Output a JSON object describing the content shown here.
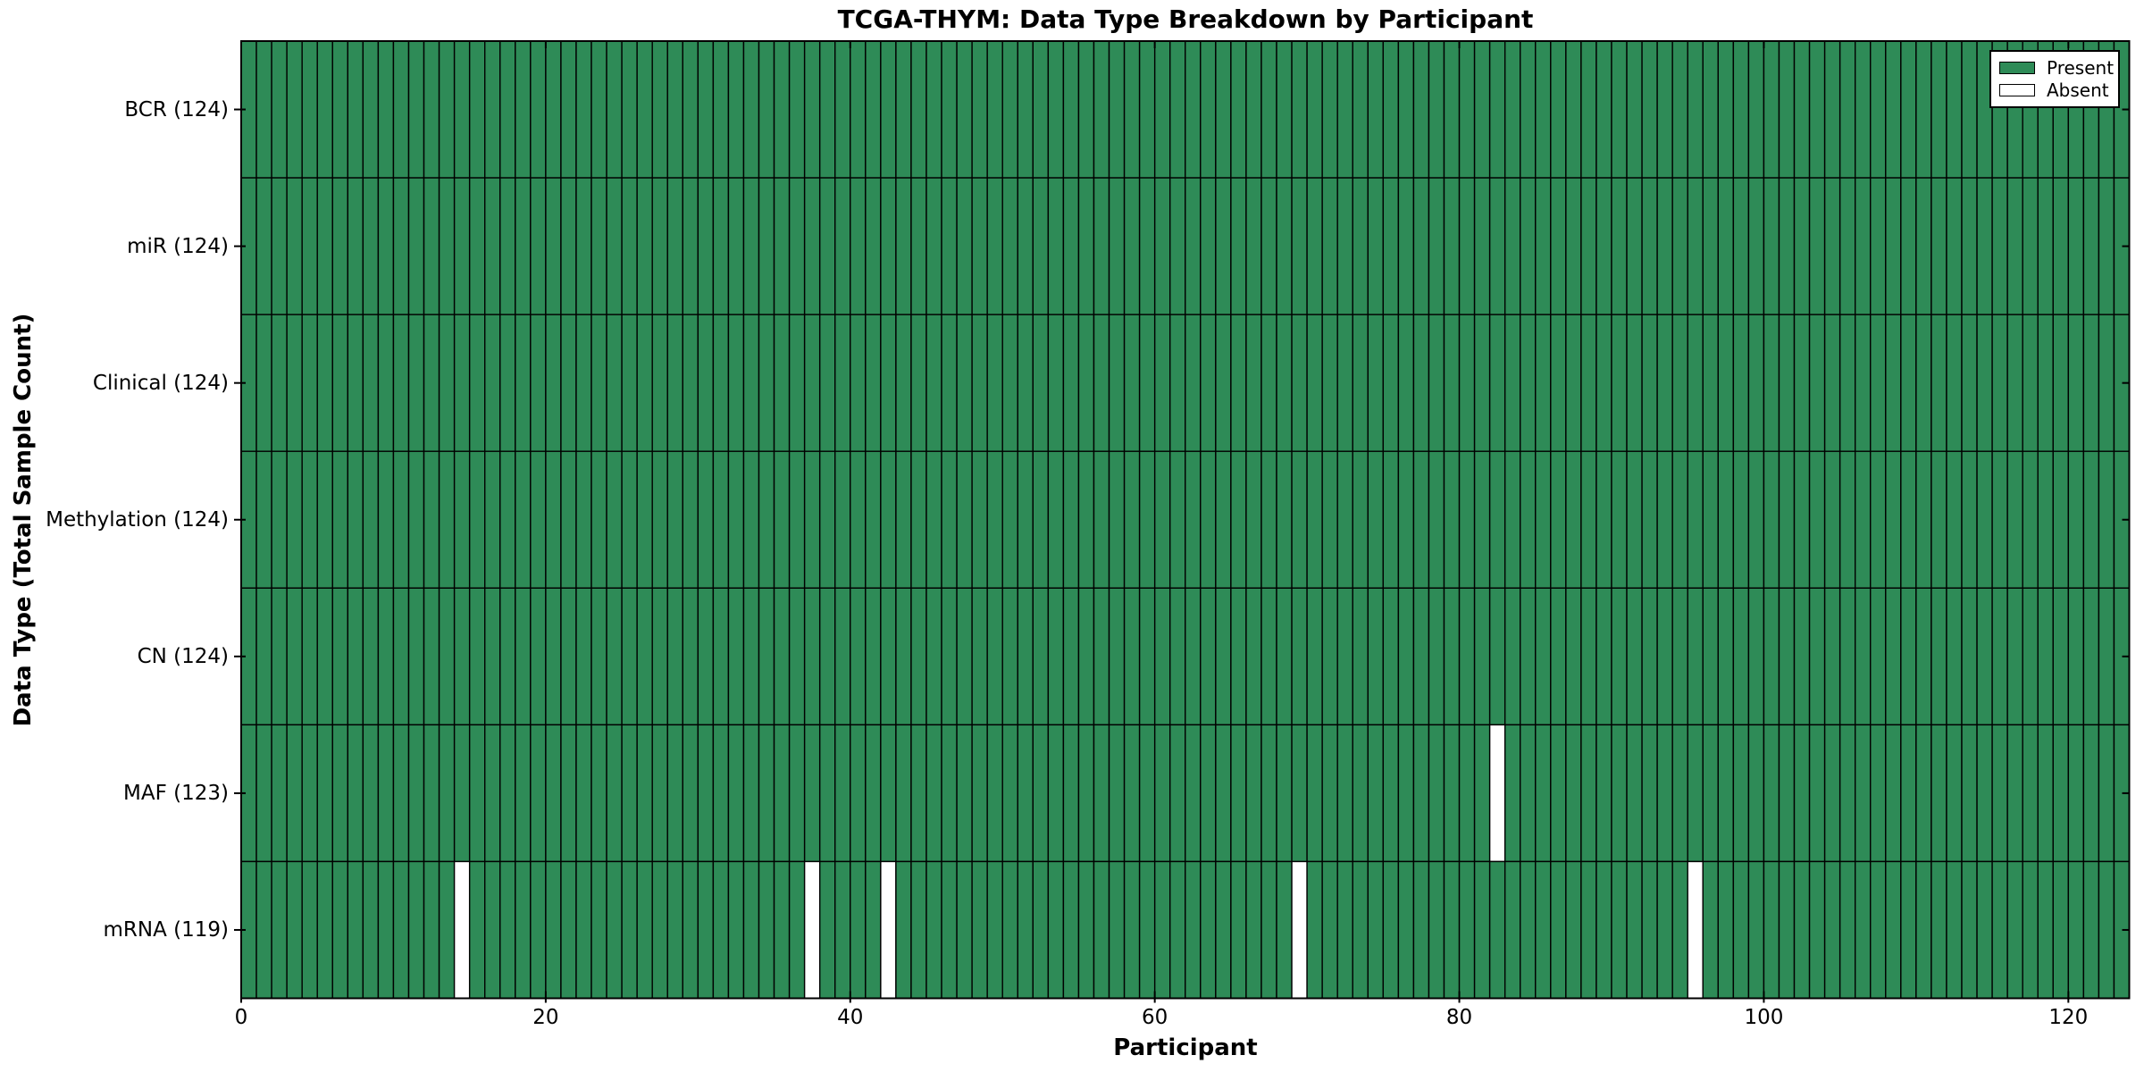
{
  "title": "TCGA-THYM: Data Type Breakdown by Participant",
  "axes": {
    "xlabel": "Participant",
    "ylabel": "Data Type (Total Sample Count)"
  },
  "legend": {
    "position": "upper right",
    "items": [
      {
        "label": "Present",
        "color": "#2E8B57"
      },
      {
        "label": "Absent",
        "color": "#FFFFFF"
      }
    ]
  },
  "chart_data": {
    "type": "heatmap",
    "subtype": "presence-absence-matrix",
    "title": "TCGA-THYM: Data Type Breakdown by Participant",
    "xlabel": "Participant",
    "ylabel": "Data Type (Total Sample Count)",
    "n_participants": 124,
    "x_range": [
      0,
      124
    ],
    "x_ticks": [
      0,
      20,
      40,
      60,
      80,
      100,
      120
    ],
    "rows": [
      {
        "name": "BCR",
        "label": "BCR (124)",
        "present_count": 124,
        "absent_participants": []
      },
      {
        "name": "miR",
        "label": "miR (124)",
        "present_count": 124,
        "absent_participants": []
      },
      {
        "name": "Clinical",
        "label": "Clinical (124)",
        "present_count": 124,
        "absent_participants": []
      },
      {
        "name": "Methylation",
        "label": "Methylation (124)",
        "present_count": 124,
        "absent_participants": []
      },
      {
        "name": "CN",
        "label": "CN (124)",
        "present_count": 124,
        "absent_participants": []
      },
      {
        "name": "MAF",
        "label": "MAF (123)",
        "present_count": 123,
        "absent_participants": [
          82
        ]
      },
      {
        "name": "mRNA",
        "label": "mRNA (119)",
        "present_count": 119,
        "absent_participants": [
          14,
          37,
          42,
          69,
          95
        ]
      }
    ],
    "colors": {
      "present": "#2E8B57",
      "absent": "#FFFFFF",
      "edge": "#000000"
    },
    "legend_entries": [
      "Present",
      "Absent"
    ],
    "legend_position": "upper right",
    "grid": false
  }
}
